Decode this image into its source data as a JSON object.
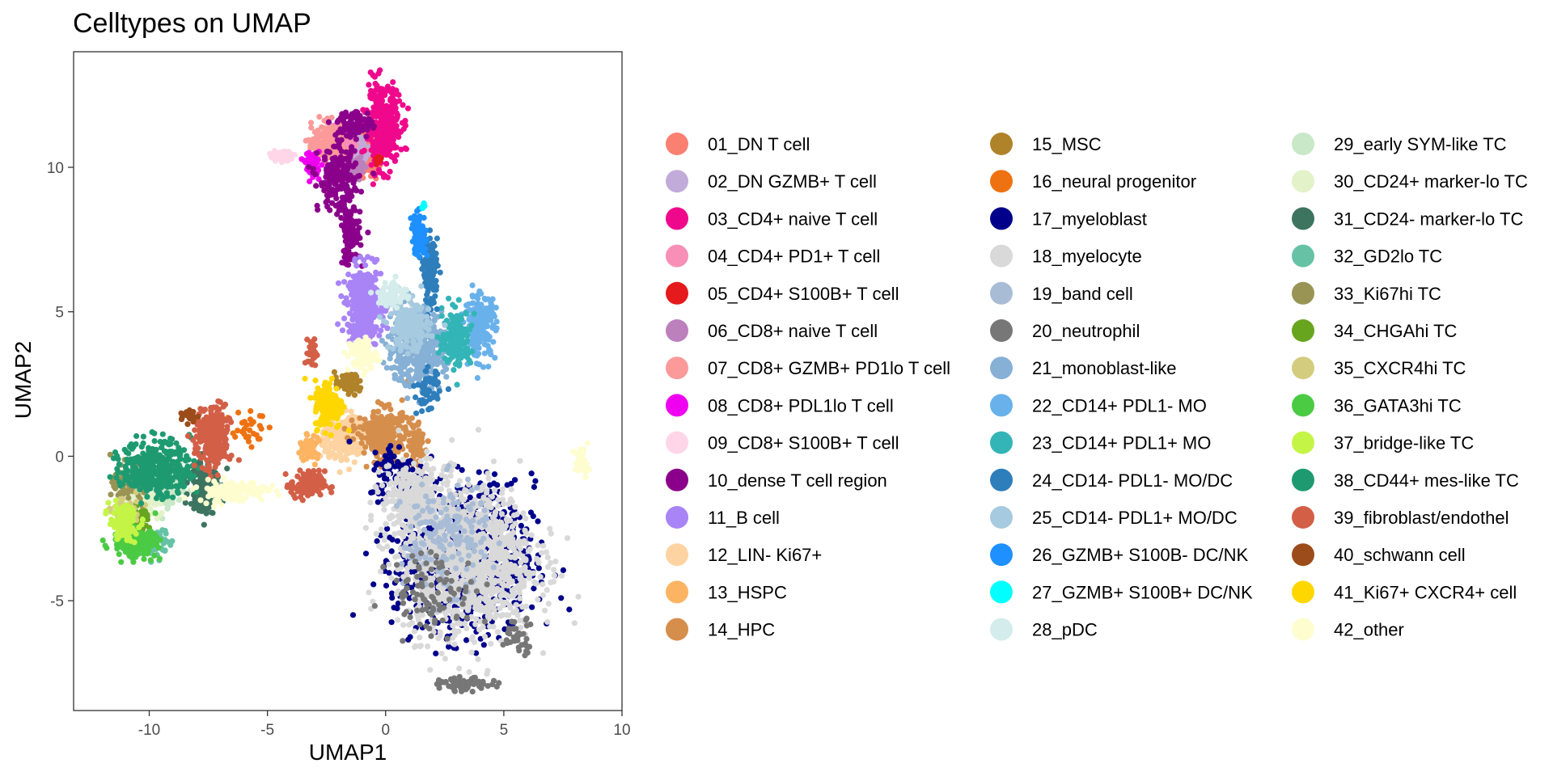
{
  "chart_data": {
    "type": "scatter",
    "title": "Celltypes on UMAP",
    "xlabel": "UMAP1",
    "ylabel": "UMAP2",
    "xlim": [
      -13.2,
      10
    ],
    "ylim": [
      -8.8,
      14
    ],
    "xticks": [
      -10,
      -5,
      0,
      5,
      10
    ],
    "yticks": [
      -5,
      0,
      5,
      10
    ],
    "xtick_labels": [
      "-10",
      "-5",
      "0",
      "5",
      "10"
    ],
    "ytick_labels": [
      "-5",
      "0",
      "5",
      "10"
    ],
    "grid": false,
    "legend_position": "right",
    "series": [
      {
        "name": "01_DN T cell",
        "color": "#FA8072",
        "clusters": [
          [
            -0.9,
            10.5,
            0.5,
            0.7,
            160
          ]
        ]
      },
      {
        "name": "02_DN GZMB+ T cell",
        "color": "#C1ABD9",
        "clusters": [
          [
            -1.5,
            10.6,
            0.55,
            0.6,
            140
          ]
        ]
      },
      {
        "name": "03_CD4+ naive T cell",
        "color": "#F0088C",
        "clusters": [
          [
            -0.1,
            11.4,
            0.6,
            1.1,
            380
          ]
        ]
      },
      {
        "name": "04_CD4+ PD1+ T cell",
        "color": "#F88FB7",
        "clusters": [
          [
            -1.9,
            10.8,
            0.5,
            0.55,
            140
          ]
        ]
      },
      {
        "name": "05_CD4+ S100B+ T cell",
        "color": "#E41A1C",
        "clusters": [
          [
            -0.3,
            10.2,
            0.15,
            0.2,
            10
          ]
        ]
      },
      {
        "name": "06_CD8+ naive T cell",
        "color": "#BC80BD",
        "clusters": [
          [
            -1.2,
            10.0,
            0.35,
            0.35,
            50
          ]
        ]
      },
      {
        "name": "07_CD8+ GZMB+ PD1lo T cell",
        "color": "#FB9A99",
        "clusters": [
          [
            -2.4,
            10.9,
            0.6,
            0.5,
            200
          ]
        ]
      },
      {
        "name": "08_CD8+ PDL1lo T cell",
        "color": "#F000F0",
        "clusters": [
          [
            -3.1,
            10.1,
            0.25,
            0.35,
            60
          ]
        ]
      },
      {
        "name": "09_CD8+ S100B+ T cell",
        "color": "#FFD6E8",
        "clusters": [
          [
            -4.4,
            10.4,
            0.45,
            0.15,
            50
          ]
        ]
      },
      {
        "name": "10_dense T cell region",
        "color": "#8B008B",
        "clusters": [
          [
            -2.0,
            9.6,
            0.7,
            0.9,
            200
          ],
          [
            -1.5,
            7.7,
            0.35,
            0.9,
            120
          ],
          [
            -1.3,
            11.5,
            0.6,
            0.4,
            80
          ]
        ]
      },
      {
        "name": "11_B cell",
        "color": "#A884F7",
        "clusters": [
          [
            -0.9,
            5.2,
            0.6,
            1.1,
            380
          ]
        ]
      },
      {
        "name": "12_LIN- Ki67+",
        "color": "#FDD3A2",
        "clusters": [
          [
            -1.8,
            0.6,
            0.7,
            0.7,
            220
          ]
        ]
      },
      {
        "name": "13_HSPC",
        "color": "#FDB462",
        "clusters": [
          [
            -3.3,
            0.3,
            0.35,
            0.35,
            50
          ]
        ]
      },
      {
        "name": "14_HPC",
        "color": "#D68E4C",
        "clusters": [
          [
            -0.1,
            0.8,
            0.9,
            0.7,
            280
          ],
          [
            1.3,
            0.4,
            0.3,
            0.6,
            60
          ]
        ]
      },
      {
        "name": "15_MSC",
        "color": "#B0822A",
        "clusters": [
          [
            -1.6,
            2.5,
            0.45,
            0.3,
            60
          ]
        ]
      },
      {
        "name": "16_neural progenitor",
        "color": "#EE7211",
        "clusters": [
          [
            -5.8,
            1.0,
            0.6,
            0.5,
            30
          ]
        ]
      },
      {
        "name": "17_myeloblast",
        "color": "#00008B",
        "clusters": [
          [
            3.4,
            -3.6,
            2.4,
            2.1,
            850
          ],
          [
            0.5,
            -0.5,
            1.0,
            0.8,
            80
          ]
        ]
      },
      {
        "name": "18_myelocyte",
        "color": "#D9D9D9",
        "clusters": [
          [
            3.4,
            -3.6,
            2.4,
            2.1,
            1200
          ],
          [
            1.2,
            -1.5,
            1.1,
            1.0,
            300
          ]
        ]
      },
      {
        "name": "19_band cell",
        "color": "#A9BCD6",
        "clusters": [
          [
            2.5,
            -2.8,
            1.5,
            1.5,
            180
          ]
        ]
      },
      {
        "name": "20_neutrophil",
        "color": "#777777",
        "clusters": [
          [
            3.4,
            -7.9,
            0.9,
            0.18,
            70
          ],
          [
            5.6,
            -6.2,
            0.6,
            0.5,
            40
          ],
          [
            2.0,
            -4.7,
            1.6,
            1.2,
            90
          ]
        ]
      },
      {
        "name": "21_monoblast-like",
        "color": "#86B0D5",
        "clusters": [
          [
            1.3,
            3.8,
            1.0,
            1.1,
            420
          ]
        ]
      },
      {
        "name": "22_CD14+ PDL1- MO",
        "color": "#69B1EB",
        "clusters": [
          [
            4.0,
            4.5,
            0.55,
            0.9,
            200
          ]
        ]
      },
      {
        "name": "23_CD14+ PDL1+ MO",
        "color": "#33B5B7",
        "clusters": [
          [
            3.0,
            4.1,
            0.5,
            0.8,
            180
          ]
        ]
      },
      {
        "name": "24_CD14- PDL1- MO/DC",
        "color": "#2E7EBC",
        "clusters": [
          [
            1.9,
            6.4,
            0.25,
            0.9,
            140
          ],
          [
            1.8,
            2.2,
            0.4,
            0.6,
            60
          ]
        ]
      },
      {
        "name": "25_CD14- PDL1+ MO/DC",
        "color": "#A6CAE0",
        "clusters": [
          [
            1.0,
            4.5,
            0.7,
            0.7,
            200
          ]
        ]
      },
      {
        "name": "26_GZMB+ S100B- DC/NK",
        "color": "#1E90FF",
        "clusters": [
          [
            1.4,
            7.7,
            0.25,
            0.6,
            90
          ]
        ]
      },
      {
        "name": "27_GZMB+ S100B+ DC/NK",
        "color": "#00FFFF",
        "clusters": [
          [
            1.6,
            8.7,
            0.1,
            0.1,
            6
          ]
        ]
      },
      {
        "name": "28_pDC",
        "color": "#D4ECEB",
        "clusters": [
          [
            0.3,
            5.6,
            0.5,
            0.4,
            70
          ]
        ]
      },
      {
        "name": "29_early SYM-like TC",
        "color": "#C8E8C7",
        "clusters": [
          [
            -9.3,
            -1.1,
            0.7,
            0.6,
            130
          ]
        ]
      },
      {
        "name": "30_CD24+ marker-lo TC",
        "color": "#E3F2C8",
        "clusters": [
          [
            -10.4,
            -1.6,
            0.7,
            0.6,
            110
          ]
        ]
      },
      {
        "name": "31_CD24- marker-lo TC",
        "color": "#3C7460",
        "clusters": [
          [
            -7.7,
            -1.0,
            0.5,
            0.8,
            200
          ]
        ]
      },
      {
        "name": "32_GD2lo TC",
        "color": "#66C2A5",
        "clusters": [
          [
            -9.8,
            -3.0,
            0.6,
            0.4,
            60
          ]
        ]
      },
      {
        "name": "33_Ki67hi TC",
        "color": "#999454",
        "clusters": [
          [
            -10.8,
            -0.9,
            0.6,
            0.5,
            90
          ]
        ]
      },
      {
        "name": "34_CHGAhi TC",
        "color": "#67A51E",
        "clusters": [
          [
            -10.5,
            -2.2,
            0.4,
            0.4,
            60
          ]
        ]
      },
      {
        "name": "35_CXCR4hi TC",
        "color": "#D3CC7E",
        "clusters": [
          [
            -11.0,
            -1.9,
            0.5,
            0.4,
            60
          ]
        ]
      },
      {
        "name": "36_GATA3hi TC",
        "color": "#4BCB44",
        "clusters": [
          [
            -10.6,
            -3.0,
            0.75,
            0.4,
            180
          ]
        ]
      },
      {
        "name": "37_bridge-like TC",
        "color": "#C4F546",
        "clusters": [
          [
            -11.1,
            -2.3,
            0.5,
            0.5,
            110
          ]
        ]
      },
      {
        "name": "38_CD44+ mes-like TC",
        "color": "#1E9A71",
        "clusters": [
          [
            -9.7,
            -0.4,
            1.2,
            0.8,
            360
          ]
        ]
      },
      {
        "name": "39_fibroblast/endothel",
        "color": "#D35F47",
        "clusters": [
          [
            -7.3,
            0.6,
            0.6,
            0.9,
            260
          ],
          [
            -3.3,
            -1.0,
            0.6,
            0.4,
            120
          ],
          [
            -3.1,
            3.6,
            0.15,
            0.4,
            30
          ]
        ]
      },
      {
        "name": "40_schwann cell",
        "color": "#9C4C1A",
        "clusters": [
          [
            -8.3,
            1.4,
            0.35,
            0.2,
            20
          ]
        ]
      },
      {
        "name": "41_Ki67+ CXCR4+ cell",
        "color": "#FFD700",
        "clusters": [
          [
            -2.4,
            1.8,
            0.5,
            0.7,
            180
          ]
        ]
      },
      {
        "name": "42_other",
        "color": "#FEFDD0",
        "clusters": [
          [
            -6.5,
            -1.2,
            1.2,
            0.3,
            140
          ],
          [
            8.3,
            -0.2,
            0.25,
            0.4,
            40
          ],
          [
            -1.0,
            3.5,
            0.5,
            0.5,
            80
          ]
        ]
      }
    ]
  }
}
